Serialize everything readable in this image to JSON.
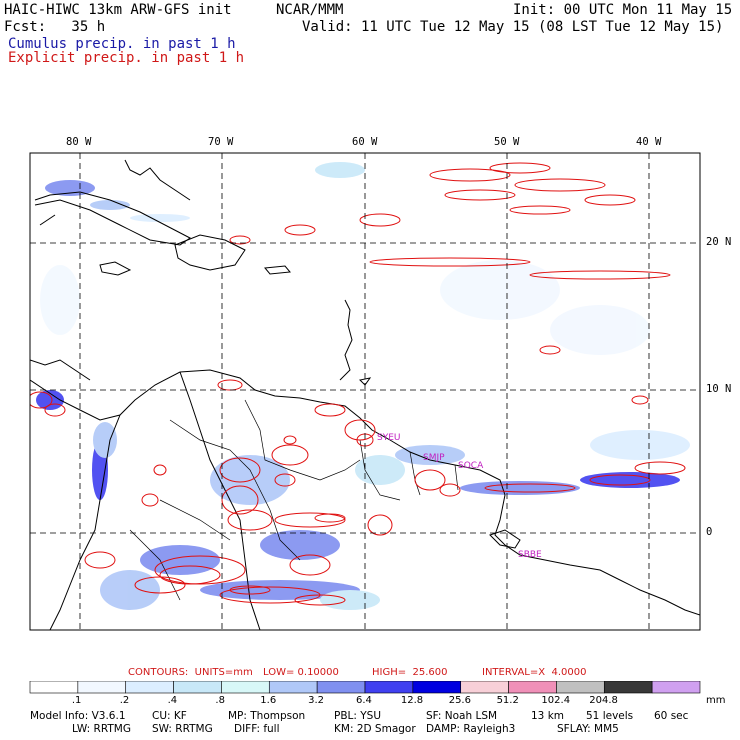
{
  "header": {
    "title": "HAIC-HIWC 13km ARW-GFS init",
    "org": "NCAR/MMM",
    "init": "Init: 00 UTC Mon 11 May 15",
    "fcst": "Fcst:   35 h",
    "valid": "Valid: 11 UTC Tue 12 May 15 (08 LST Tue 12 May 15)"
  },
  "legend": {
    "cumulus": "Cumulus precip. in past 1 h",
    "explicit": "Explicit precip. in past 1 h"
  },
  "axes": {
    "lon_labels": [
      "80 W",
      "70 W",
      "60 W",
      "50 W",
      "40 W"
    ],
    "lat_labels": [
      "20 N",
      "10 N",
      "0"
    ]
  },
  "stations": [
    "SYEU",
    "SMJP",
    "SOCA",
    "SBBE"
  ],
  "contours": {
    "units": "CONTOURS:  UNITS=mm",
    "low": "LOW= 0.10000",
    "high": "HIGH=  25.600",
    "interval": "INTERVAL=X  4.0000"
  },
  "colorbar": {
    "labels": [
      ".1",
      ".2",
      ".4",
      ".8",
      "1.6",
      "3.2",
      "6.4",
      "12.8",
      "25.6",
      "51.2",
      "102.4",
      "204.8"
    ],
    "unit": "mm",
    "colors": [
      "#ffffff",
      "#f2f8ff",
      "#dceeff",
      "#c8e8f8",
      "#d8f8f8",
      "#b0c8f8",
      "#8090f0",
      "#4040f0",
      "#0000e0",
      "#f8d0d8",
      "#f090b8",
      "#c0c0c0",
      "#383838",
      "#d0a0f0"
    ]
  },
  "model_info": {
    "line1": [
      "Model Info: V3.6.1",
      "CU: KF",
      "MP: Thompson",
      "PBL: YSU",
      "SF: Noah LSM",
      "13 km",
      "51 levels",
      "60 sec"
    ],
    "line2": [
      "LW: RRTMG",
      "SW: RRTMG",
      "DIFF: full",
      "KM: 2D Smagor",
      "DAMP: Rayleigh3",
      "SFLAY: MM5"
    ]
  }
}
